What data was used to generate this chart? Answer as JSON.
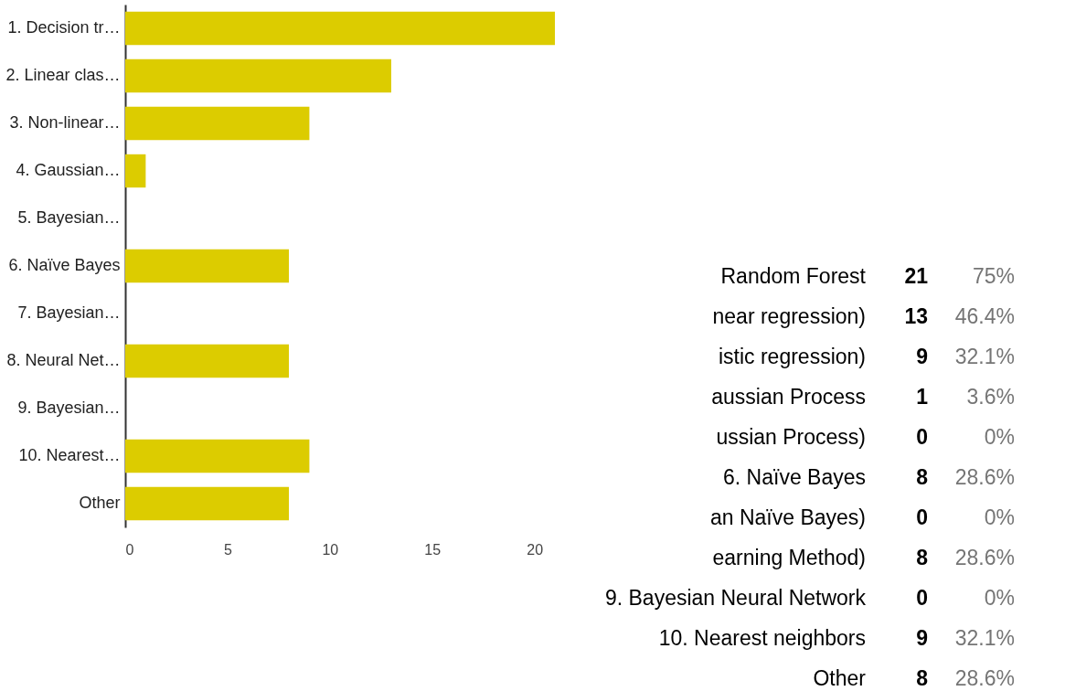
{
  "chart_data": [
    {
      "type": "bar",
      "orientation": "horizontal",
      "categories": [
        "1. Decision tr…",
        "2. Linear clas…",
        "3. Non-linear…",
        "4. Gaussian…",
        "5. Bayesian…",
        "6. Naïve Bayes",
        "7. Bayesian…",
        "8. Neural Net…",
        "9. Bayesian…",
        "10. Nearest…",
        "Other"
      ],
      "values": [
        21,
        13,
        9,
        1,
        0,
        8,
        0,
        8,
        0,
        9,
        8
      ],
      "color": "#dccc00",
      "xlim": [
        0,
        21
      ],
      "xticks": [
        0,
        5,
        10,
        15,
        20
      ],
      "grid": false
    },
    {
      "type": "other",
      "categories": [
        "Random Forest",
        "near regression)",
        "istic regression)",
        "aussian Process",
        "ussian Process)",
        "6. Naïve Bayes",
        "an Naïve Bayes)",
        "earning Method)",
        "9. Bayesian Neural Network",
        "10. Nearest neighbors",
        "Other"
      ],
      "values": [
        21,
        13,
        9,
        1,
        0,
        8,
        0,
        8,
        0,
        9,
        8
      ],
      "data_labels": true,
      "annotations": [
        "75%",
        "46.4%",
        "32.1%",
        "3.6%",
        "0%",
        "28.6%",
        "0%",
        "28.6%",
        "0%",
        "32.1%",
        "28.6%"
      ]
    }
  ]
}
